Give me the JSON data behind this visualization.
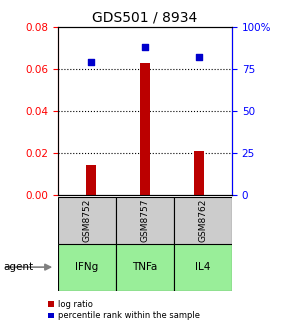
{
  "title": "GDS501 / 8934",
  "samples": [
    "GSM8752",
    "GSM8757",
    "GSM8762"
  ],
  "agents": [
    "IFNg",
    "TNFa",
    "IL4"
  ],
  "log_ratio": [
    0.014,
    0.063,
    0.021
  ],
  "percentile_rank_pct": [
    79,
    88,
    82
  ],
  "bar_color": "#bb0000",
  "dot_color": "#0000cc",
  "ylim_left": [
    0,
    0.08
  ],
  "ylim_right": [
    0,
    100
  ],
  "yticks_left": [
    0,
    0.02,
    0.04,
    0.06,
    0.08
  ],
  "yticks_right": [
    0,
    25,
    50,
    75,
    100
  ],
  "sample_bg": "#cccccc",
  "agent_bg": "#99ee99",
  "legend_log_ratio": "log ratio",
  "legend_percentile": "percentile rank within the sample"
}
